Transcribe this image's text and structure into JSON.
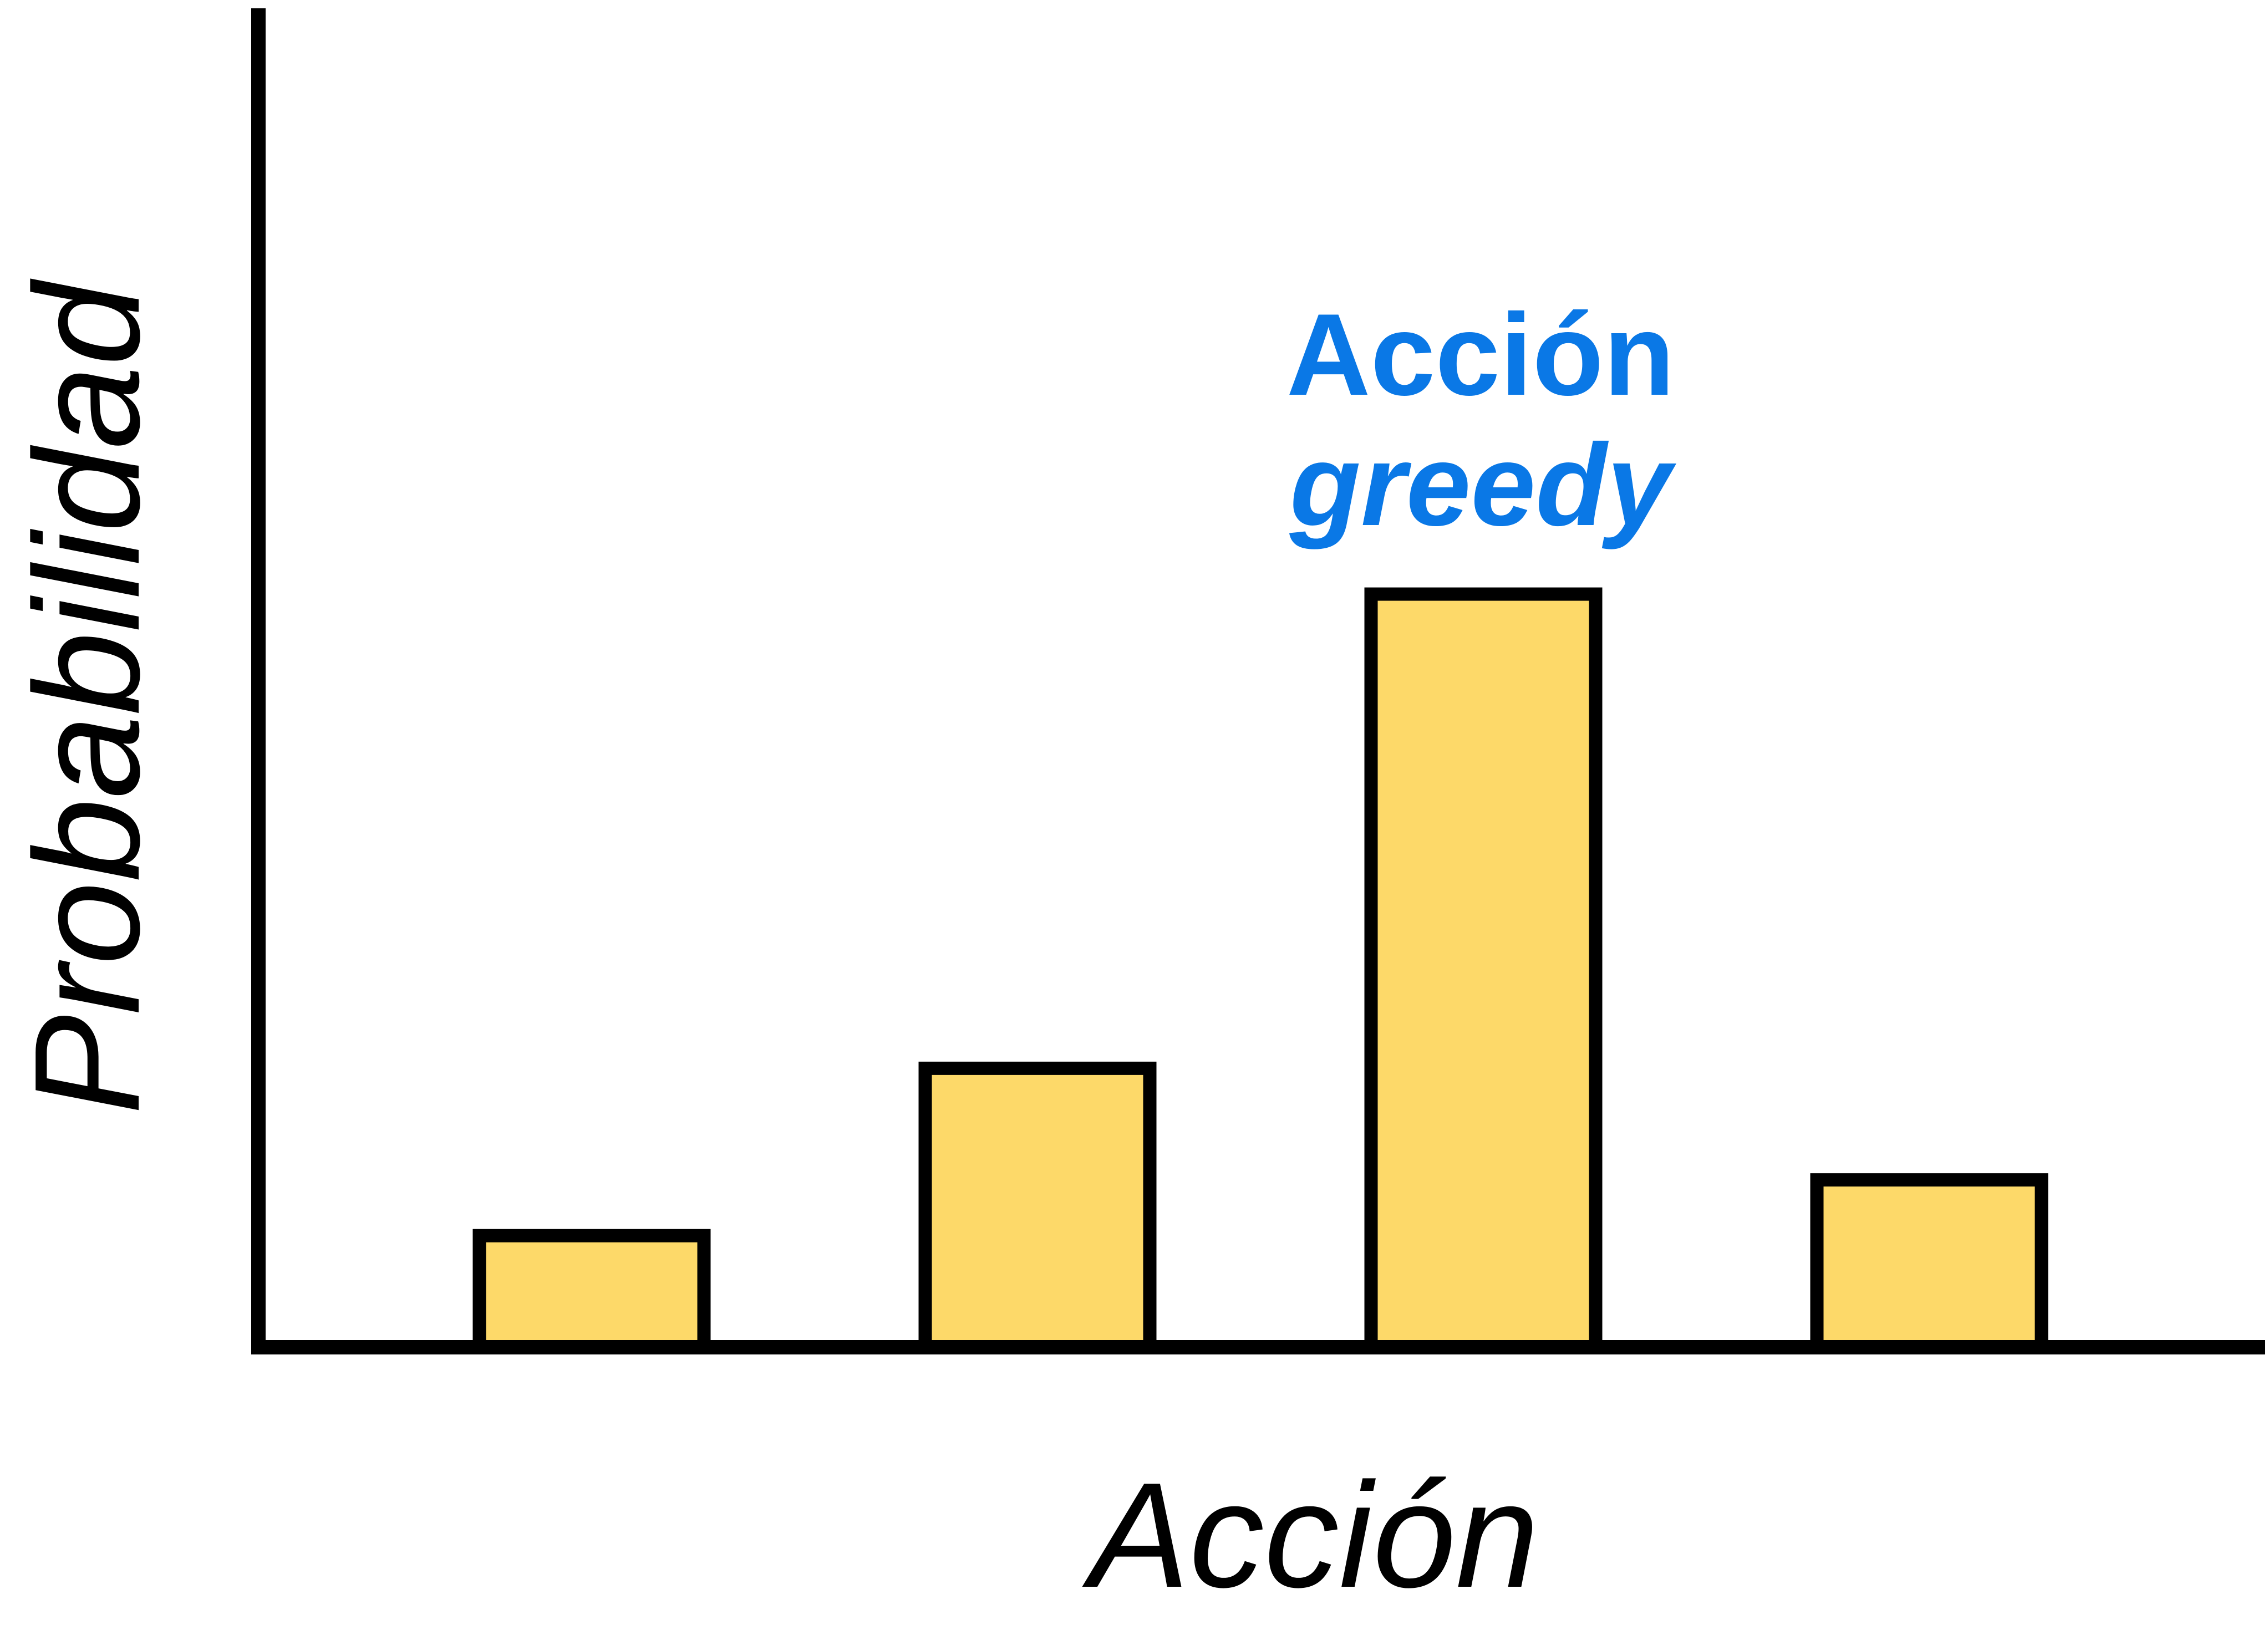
{
  "chart_data": {
    "type": "bar",
    "categories": [
      "",
      "",
      "",
      ""
    ],
    "values": [
      0.2,
      0.5,
      1.35,
      0.3
    ],
    "xlabel": "Acción",
    "ylabel": "Probabilidad",
    "ylim": [
      0,
      2.4
    ],
    "grid": false,
    "annotation": {
      "line1": "Acción",
      "line2": "greedy",
      "target_index": 2,
      "color": "#0A78E6"
    },
    "bar_fill": "#FDD969",
    "bar_stroke": "#000000"
  }
}
